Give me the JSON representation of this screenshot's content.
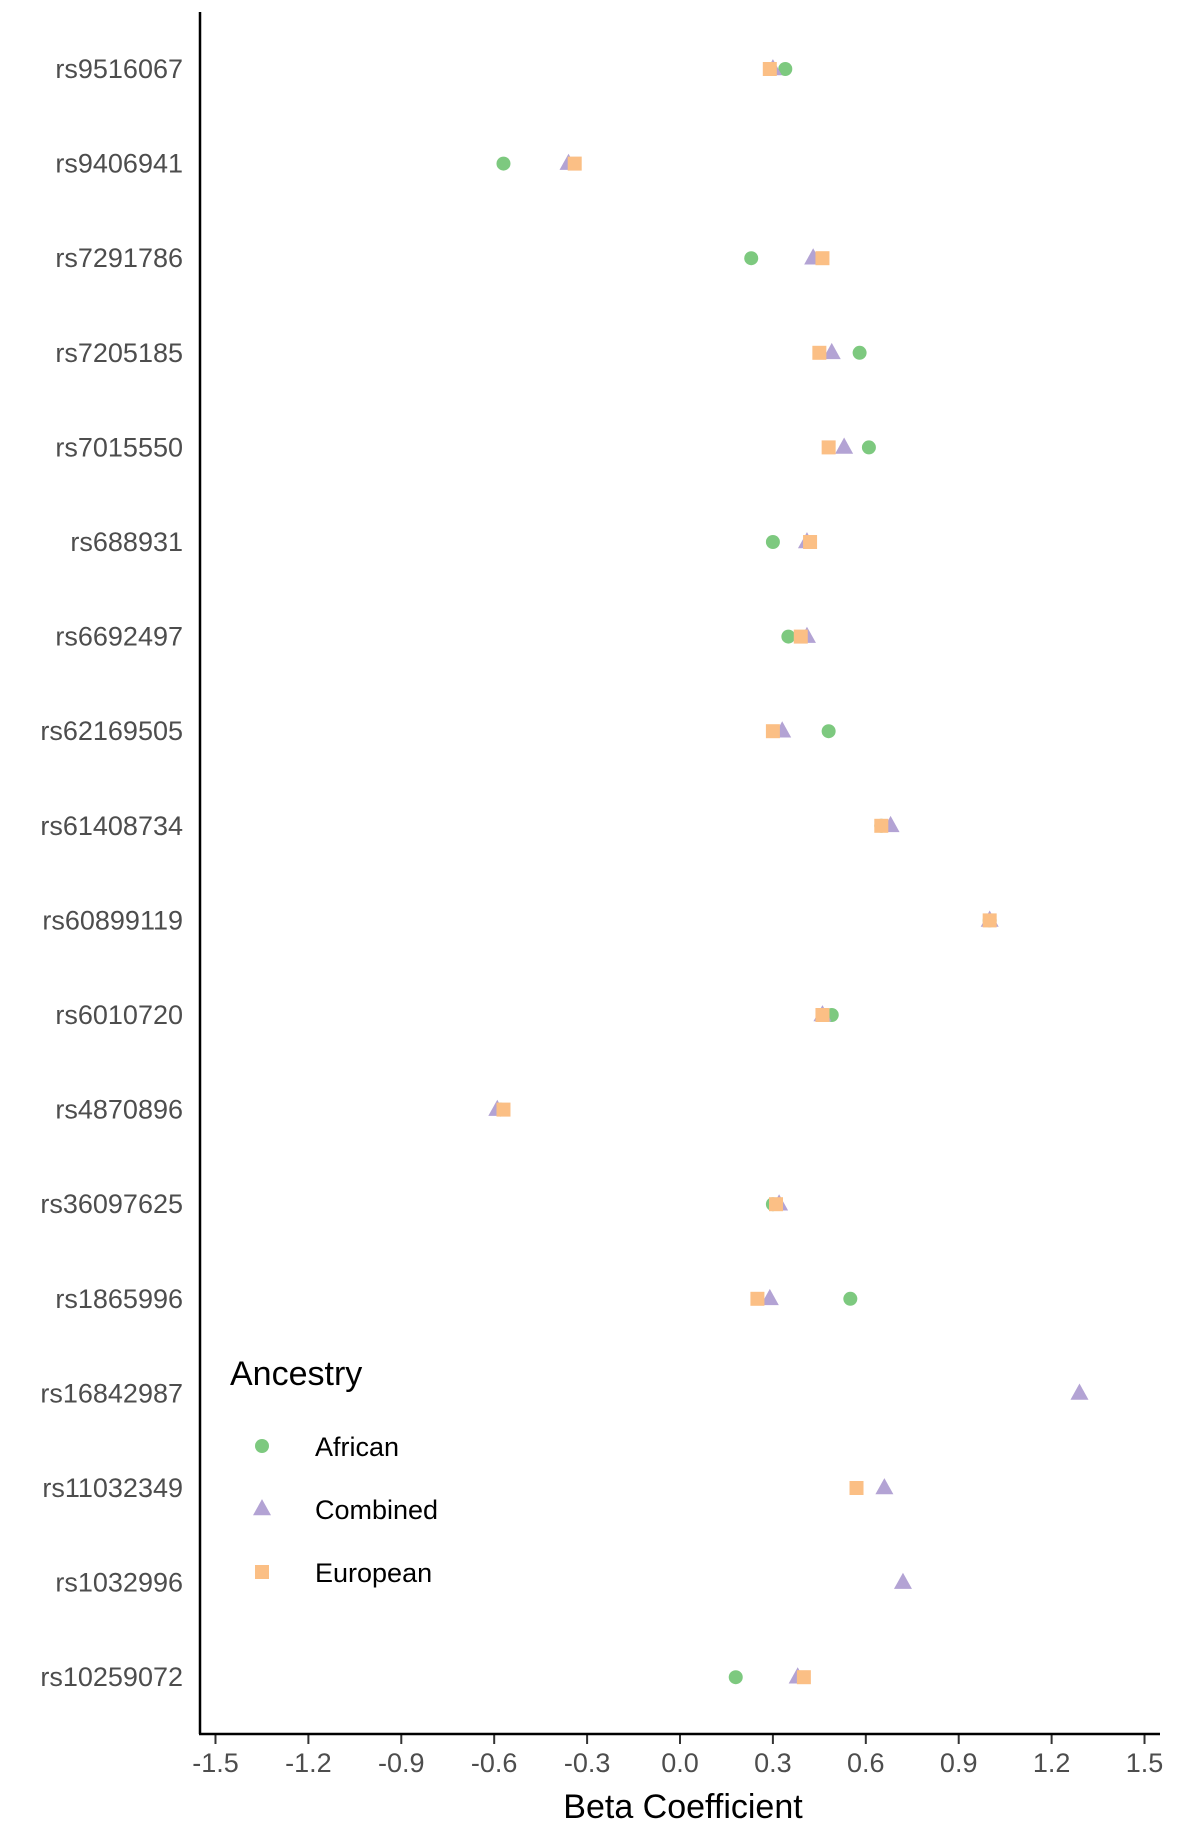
{
  "chart_data": {
    "type": "scatter",
    "title": "",
    "xlabel": "Beta Coefficient",
    "ylabel": "",
    "xlim": [
      -1.55,
      1.55
    ],
    "xticks": [
      -1.5,
      -1.2,
      -0.9,
      -0.6,
      -0.3,
      0.0,
      0.3,
      0.6,
      0.9,
      1.2,
      1.5
    ],
    "xtick_labels": [
      "-1.5",
      "-1.2",
      "-0.9",
      "-0.6",
      "-0.3",
      "0.0",
      "0.3",
      "0.6",
      "0.9",
      "1.2",
      "1.5"
    ],
    "grid": false,
    "legend": {
      "title": "Ancestry",
      "placement": "bottom-left",
      "entries": [
        "African",
        "Combined",
        "European"
      ]
    },
    "categories": [
      "rs9516067",
      "rs9406941",
      "rs7291786",
      "rs7205185",
      "rs7015550",
      "rs688931",
      "rs6692497",
      "rs62169505",
      "rs61408734",
      "rs60899119",
      "rs6010720",
      "rs4870896",
      "rs36097625",
      "rs1865996",
      "rs16842987",
      "rs11032349",
      "rs1032996",
      "rs10259072"
    ],
    "series": [
      {
        "name": "African",
        "marker": "circle",
        "color": "#7dc97f",
        "values": [
          0.34,
          -0.57,
          0.23,
          0.58,
          0.61,
          0.3,
          0.35,
          0.48,
          0.65,
          1.0,
          0.49,
          -0.58,
          0.3,
          0.55,
          null,
          null,
          null,
          0.18
        ]
      },
      {
        "name": "Combined",
        "marker": "triangle",
        "color": "#b3a3d4",
        "values": [
          0.3,
          -0.36,
          0.43,
          0.49,
          0.53,
          0.41,
          0.41,
          0.33,
          0.68,
          1.0,
          0.46,
          -0.59,
          0.32,
          0.29,
          1.29,
          0.66,
          0.72,
          0.38
        ]
      },
      {
        "name": "European",
        "marker": "square",
        "color": "#fbbf85",
        "values": [
          0.29,
          -0.34,
          0.46,
          0.45,
          0.48,
          0.42,
          0.39,
          0.3,
          0.65,
          1.0,
          0.46,
          -0.57,
          0.31,
          0.25,
          null,
          0.57,
          null,
          0.4
        ]
      }
    ]
  }
}
